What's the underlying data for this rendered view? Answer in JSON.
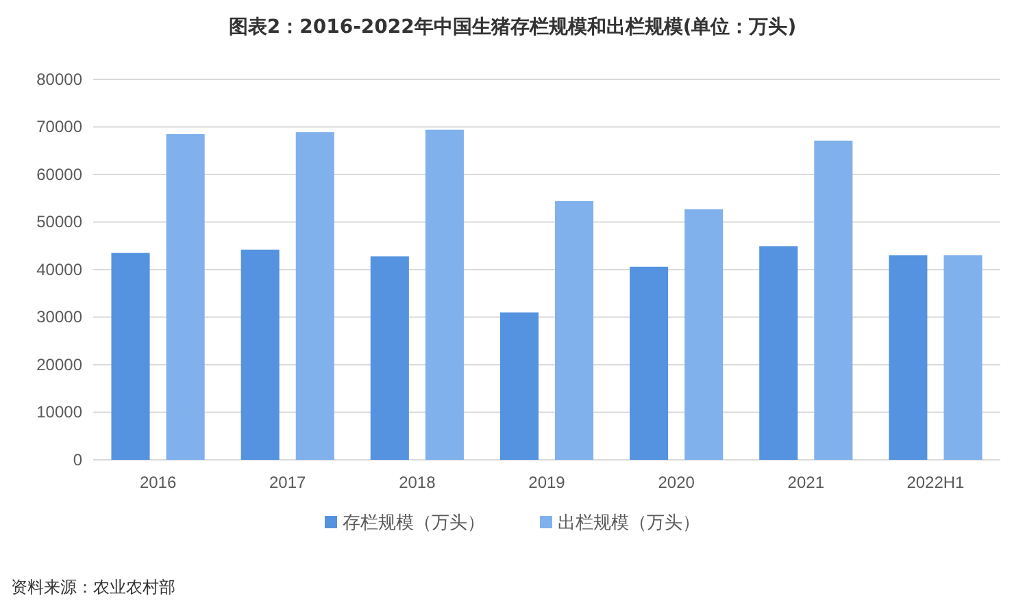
{
  "chart_data": {
    "type": "bar",
    "title": "图表2：2016-2022年中国生猪存栏规模和出栏规模(单位：万头)",
    "categories": [
      "2016",
      "2017",
      "2018",
      "2019",
      "2020",
      "2021",
      "2022H1"
    ],
    "series": [
      {
        "name": "存栏规模（万头）",
        "color": "#5592e0",
        "values": [
          43500,
          44200,
          42800,
          31000,
          40600,
          44900,
          43000
        ]
      },
      {
        "name": "出栏规模（万头）",
        "color": "#80b1ec",
        "values": [
          68500,
          68900,
          69400,
          54400,
          52700,
          67100,
          43000
        ]
      }
    ],
    "ylim": [
      0,
      80000
    ],
    "yticks": [
      0,
      10000,
      20000,
      30000,
      40000,
      50000,
      60000,
      70000,
      80000
    ],
    "grid": "y",
    "legend": "bottom",
    "annotations": [
      "资料来源：农业农村部"
    ]
  }
}
